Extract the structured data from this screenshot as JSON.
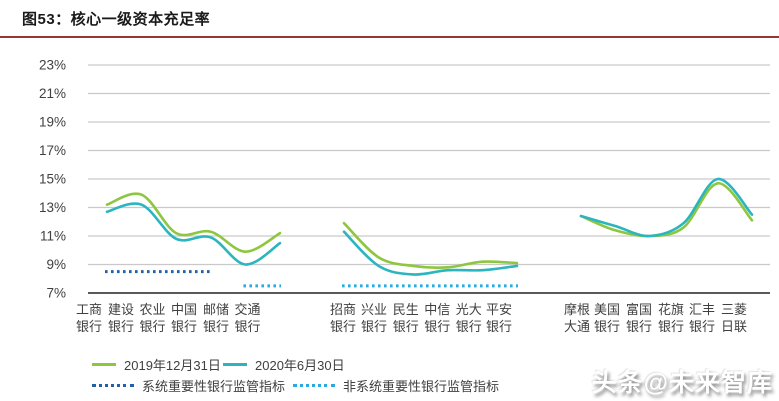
{
  "title": "图53：核心一级资本充足率",
  "title_rule_color": "#953735",
  "watermark": "头条@未来智库",
  "chart_data": {
    "type": "line",
    "title": "核心一级资本充足率",
    "ylim": [
      7,
      23
    ],
    "ytick_step": 2,
    "yticks": [
      "23%",
      "21%",
      "19%",
      "17%",
      "15%",
      "13%",
      "11%",
      "9%",
      "7%"
    ],
    "grid": "horizontal",
    "legend_position": "bottom",
    "grid_color": "#C9C9C9",
    "axis_color": "#595959",
    "text_color": "#404040",
    "category_groups": [
      [
        "工商银行",
        "建设银行",
        "农业银行",
        "中国银行",
        "邮储银行",
        "交通银行"
      ],
      [
        "招商银行",
        "兴业银行",
        "民生银行",
        "中信银行",
        "光大银行",
        "平安银行"
      ],
      [
        "摩根大通",
        "美国银行",
        "富国银行",
        "花旗银行",
        "汇丰银行",
        "三菱日联"
      ]
    ],
    "series": [
      {
        "name": "2019年12月31日",
        "color": "#8DC63F",
        "values": [
          [
            13.2,
            13.9,
            11.2,
            11.3,
            9.9,
            11.2
          ],
          [
            11.9,
            9.5,
            8.9,
            8.8,
            9.2,
            9.1
          ],
          [
            12.4,
            11.4,
            11.0,
            11.6,
            14.7,
            12.1
          ]
        ]
      },
      {
        "name": "2020年6月30日",
        "color": "#2BB5BE",
        "values": [
          [
            12.7,
            13.2,
            10.8,
            10.9,
            9.0,
            10.5
          ],
          [
            11.3,
            8.9,
            8.3,
            8.6,
            8.6,
            8.9
          ],
          [
            12.4,
            11.7,
            11.0,
            11.9,
            15.0,
            12.5
          ]
        ]
      }
    ],
    "thresholds": [
      {
        "name": "系统重要性银行监管指标",
        "value": 8.5,
        "color": "#2460A7",
        "segments": [
          {
            "group": 0,
            "from": 0,
            "to": 3
          }
        ]
      },
      {
        "name": "非系统重要性银行监管指标",
        "value": 7.5,
        "color": "#29ABE2",
        "segments": [
          {
            "group": 0,
            "from": 4,
            "to": 5
          },
          {
            "group": 1,
            "from": 0,
            "to": 5
          }
        ]
      }
    ]
  }
}
